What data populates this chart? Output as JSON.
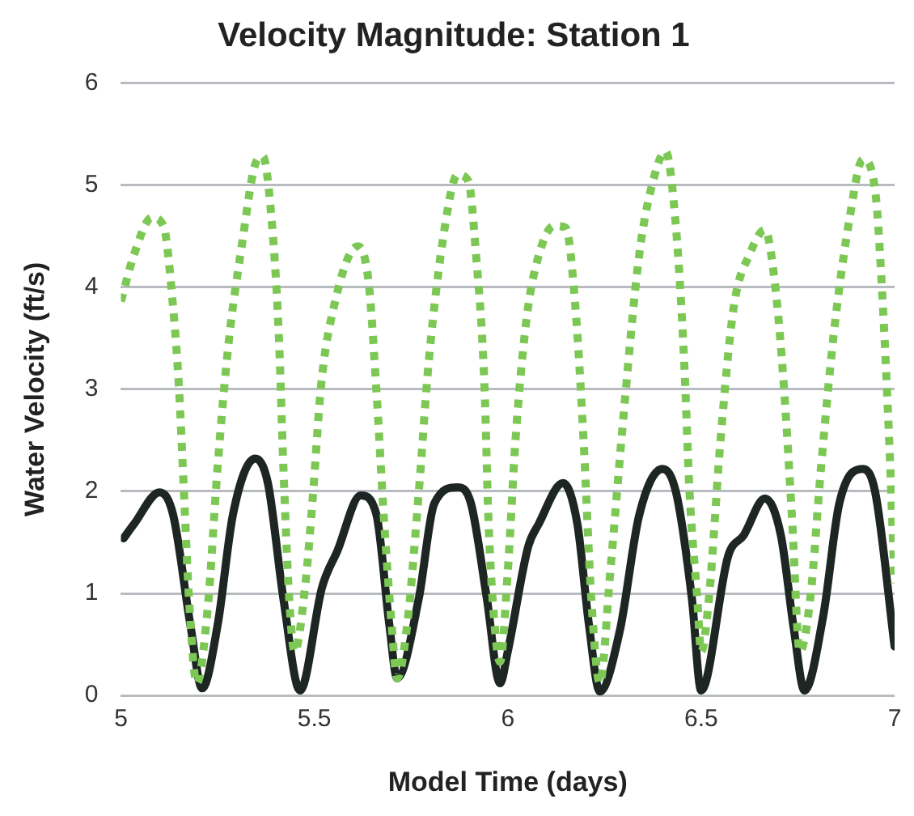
{
  "chart_data": {
    "type": "line",
    "title": "Velocity Magnitude: Station 1",
    "xlabel": "Model Time (days)",
    "ylabel": "Water Velocity (ft/s)",
    "xlim": [
      5,
      7
    ],
    "xticks": [
      5,
      5.5,
      6,
      6.5,
      7
    ],
    "ylim": [
      0,
      6
    ],
    "yticks": [
      0,
      1,
      2,
      3,
      4,
      5,
      6
    ],
    "grid": "y",
    "legend": false,
    "marker": "none",
    "series": [
      {
        "color": "#7dc855",
        "line_style": "dotted",
        "x": [
          5.0,
          5.034,
          5.08,
          5.11,
          5.135,
          5.15,
          5.163,
          5.176,
          5.196,
          5.224,
          5.25,
          5.278,
          5.313,
          5.347,
          5.367,
          5.388,
          5.408,
          5.42,
          5.435,
          5.449,
          5.476,
          5.497,
          5.517,
          5.55,
          5.612,
          5.64,
          5.66,
          5.68,
          5.7,
          5.714,
          5.74,
          5.77,
          5.796,
          5.837,
          5.87,
          5.898,
          5.918,
          5.94,
          5.95,
          5.966,
          5.98,
          6.0,
          6.02,
          6.047,
          6.073,
          6.12,
          6.15,
          6.175,
          6.196,
          6.216,
          6.238,
          6.265,
          6.3,
          6.34,
          6.38,
          6.408,
          6.435,
          6.456,
          6.47,
          6.49,
          6.5,
          6.52,
          6.55,
          6.584,
          6.625,
          6.665,
          6.69,
          6.714,
          6.735,
          6.755,
          6.782,
          6.81,
          6.843,
          6.884,
          6.918,
          6.95,
          6.97,
          6.986,
          7.0
        ],
        "values": [
          3.86,
          4.32,
          4.68,
          4.6,
          3.8,
          3.02,
          1.99,
          0.95,
          0.12,
          0.84,
          2.24,
          3.44,
          4.42,
          5.2,
          5.28,
          4.73,
          3.55,
          2.24,
          0.95,
          0.43,
          1.06,
          1.99,
          3.02,
          3.8,
          4.4,
          4.06,
          3.02,
          1.73,
          0.69,
          0.17,
          0.69,
          1.99,
          3.28,
          4.58,
          5.1,
          5.04,
          4.32,
          3.02,
          1.73,
          0.69,
          0.33,
          1.21,
          2.5,
          3.64,
          4.21,
          4.6,
          4.58,
          3.8,
          2.5,
          0.95,
          0.12,
          1.21,
          2.77,
          4.32,
          5.1,
          5.33,
          4.58,
          3.28,
          1.99,
          0.95,
          0.43,
          0.95,
          2.5,
          3.8,
          4.32,
          4.56,
          4.06,
          3.02,
          1.73,
          0.43,
          0.95,
          2.24,
          3.55,
          4.68,
          5.25,
          4.94,
          3.8,
          2.5,
          1.1
        ]
      },
      {
        "color": "#1e2624",
        "line_style": "solid",
        "x": [
          5.007,
          5.034,
          5.1,
          5.135,
          5.18,
          5.21,
          5.25,
          5.29,
          5.347,
          5.38,
          5.42,
          5.463,
          5.52,
          5.56,
          5.62,
          5.66,
          5.694,
          5.714,
          5.77,
          5.81,
          5.87,
          5.905,
          5.946,
          5.98,
          6.0,
          6.053,
          6.08,
          6.143,
          6.18,
          6.21,
          6.238,
          6.29,
          6.34,
          6.4,
          6.435,
          6.476,
          6.5,
          6.57,
          6.61,
          6.665,
          6.706,
          6.74,
          6.767,
          6.816,
          6.857,
          6.918,
          6.95,
          7.0
        ],
        "values": [
          1.54,
          1.68,
          1.99,
          1.77,
          0.68,
          0.07,
          0.69,
          1.78,
          2.32,
          2.08,
          0.95,
          0.05,
          1.06,
          1.42,
          1.96,
          1.78,
          0.69,
          0.17,
          0.95,
          1.88,
          2.04,
          1.88,
          0.95,
          0.12,
          0.43,
          1.46,
          1.68,
          2.08,
          1.68,
          0.69,
          0.04,
          0.64,
          1.77,
          2.22,
          1.99,
          0.95,
          0.05,
          1.37,
          1.57,
          1.93,
          1.57,
          0.64,
          0.05,
          0.79,
          1.88,
          2.22,
          1.99,
          0.48
        ]
      }
    ]
  }
}
